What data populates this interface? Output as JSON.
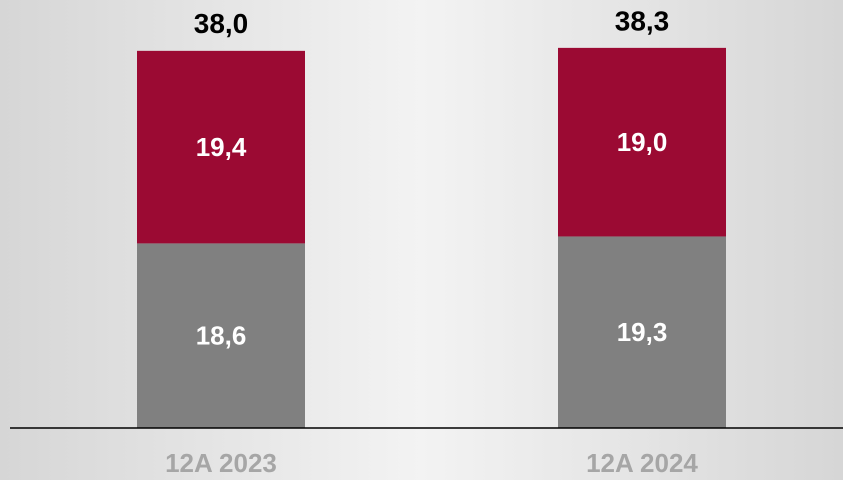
{
  "chart_data": {
    "type": "stacked_bar",
    "categories": [
      "12A 2023",
      "12A 2024"
    ],
    "series": [
      {
        "color": "#808080",
        "values": [
          18.6,
          19.3
        ],
        "value_labels": [
          "18,6",
          "19,3"
        ]
      },
      {
        "color": "#9b0a33",
        "values": [
          19.4,
          19.0
        ],
        "value_labels": [
          "19,4",
          "19,0"
        ]
      }
    ],
    "totals": {
      "values": [
        38.0,
        38.3
      ],
      "value_labels": [
        "38,0",
        "38,3"
      ]
    },
    "ylim": [
      0,
      40
    ]
  }
}
